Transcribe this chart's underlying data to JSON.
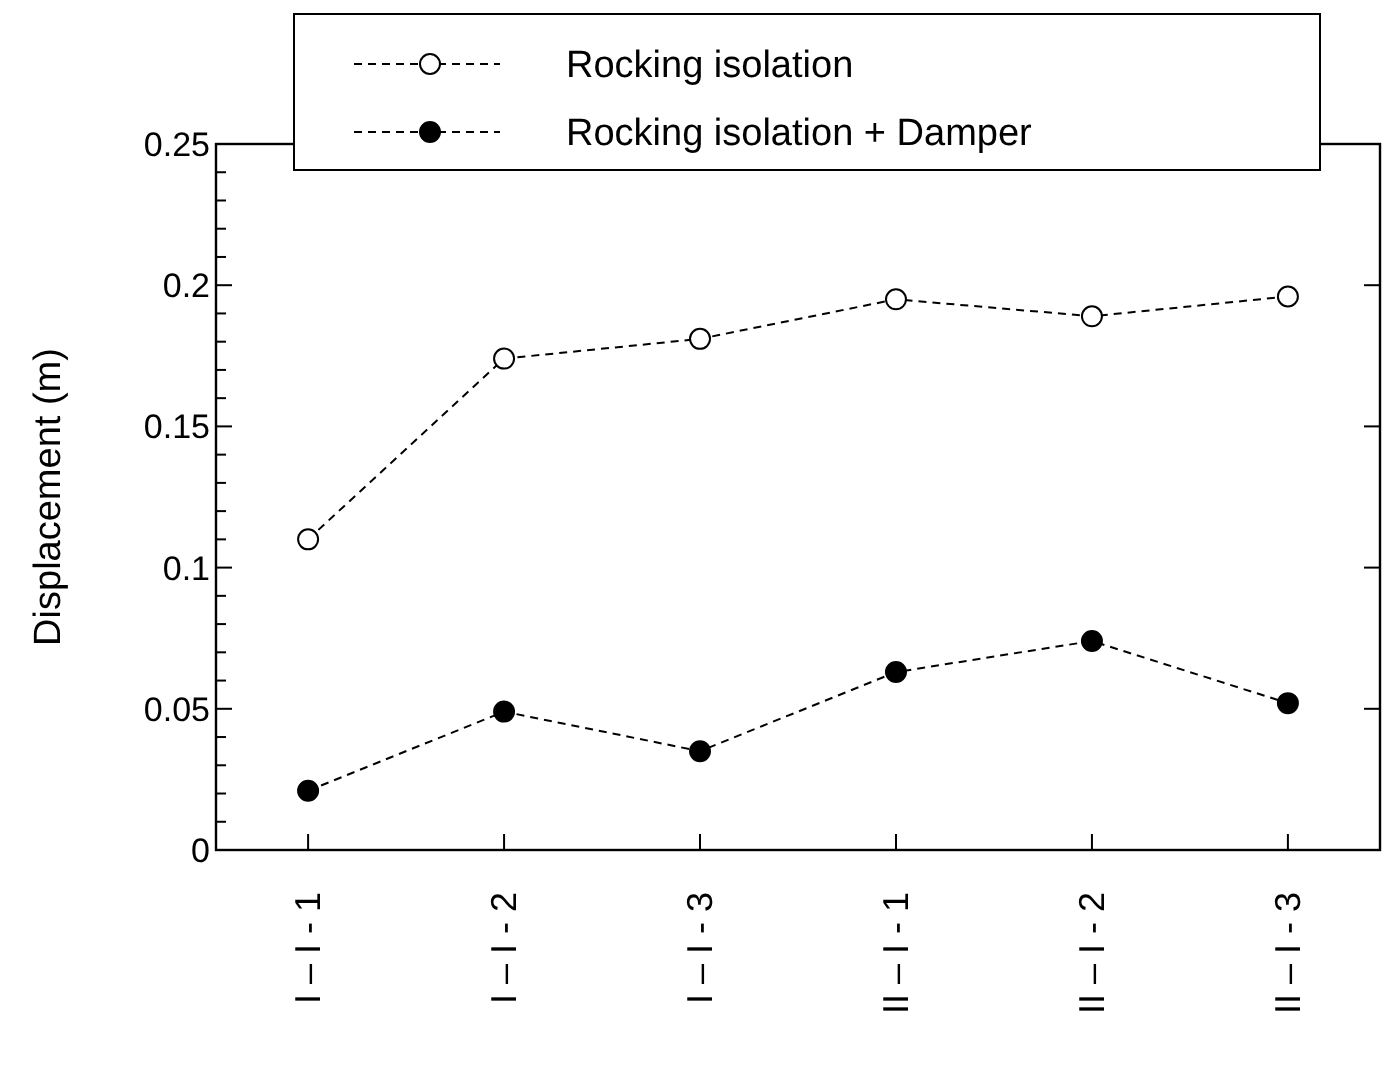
{
  "chart_data": {
    "type": "line",
    "ylabel": "Displacement (m)",
    "categories": [
      "I – I - 1",
      "I – I - 2",
      "I – I - 3",
      "II – I - 1",
      "II – I - 2",
      "II – I - 3"
    ],
    "series": [
      {
        "name": "Rocking isolation",
        "color": "#000000",
        "values": [
          0.11,
          0.174,
          0.181,
          0.195,
          0.189,
          0.196
        ]
      },
      {
        "name": "Rocking isolation + Damper",
        "color": "#000000",
        "values": [
          0.021,
          0.049,
          0.035,
          0.063,
          0.074,
          0.052
        ]
      }
    ],
    "ylim": [
      0,
      0.25
    ],
    "yticks": [
      0,
      {
        "value": 0.01,
        "label": null
      },
      {
        "value": 0.02,
        "label": null
      },
      {
        "value": 0.03,
        "label": null
      },
      {
        "value": 0.04,
        "label": null
      },
      0.05,
      {
        "value": 0.06,
        "label": null
      },
      {
        "value": 0.07,
        "label": null
      },
      {
        "value": 0.08,
        "label": null
      },
      {
        "value": 0.09,
        "label": null
      },
      0.1,
      {
        "value": 0.11,
        "label": null
      },
      {
        "value": 0.12,
        "label": null
      },
      {
        "value": 0.13,
        "label": null
      },
      {
        "value": 0.14,
        "label": null
      },
      0.15,
      {
        "value": 0.16,
        "label": null
      },
      {
        "value": 0.17,
        "label": null
      },
      {
        "value": 0.18,
        "label": null
      },
      {
        "value": 0.19,
        "label": null
      },
      0.2,
      {
        "value": 0.21,
        "label": null
      },
      {
        "value": 0.22,
        "label": null
      },
      {
        "value": 0.23,
        "label": null
      },
      {
        "value": 0.24,
        "label": null
      },
      0.25
    ],
    "grid": false,
    "legend": "top",
    "marker": "circle",
    "line_style": "dashed"
  }
}
